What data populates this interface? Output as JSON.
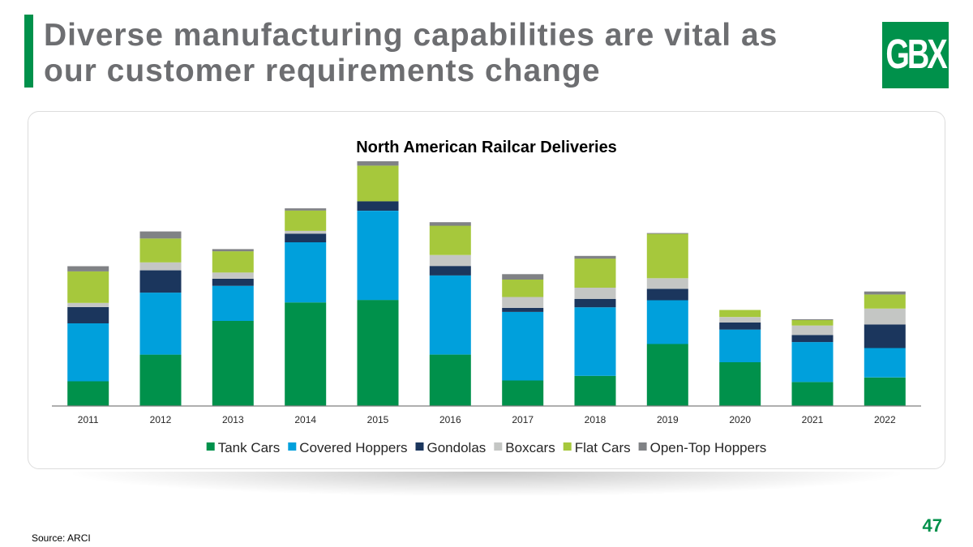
{
  "slide": {
    "title": "Diverse manufacturing capabilities are vital as our customer requirements change",
    "logo_text": "GBX",
    "page_number": "47",
    "source": "Source: ARCI",
    "brand_color": "#00914b"
  },
  "chart_data": {
    "type": "bar",
    "stacked": true,
    "title": "North American Railcar Deliveries",
    "xlabel": "",
    "ylabel": "",
    "ylim": [
      0,
      90000
    ],
    "grid": false,
    "legend_position": "bottom",
    "categories": [
      "2011",
      "2012",
      "2013",
      "2014",
      "2015",
      "2016",
      "2017",
      "2018",
      "2019",
      "2020",
      "2021",
      "2022"
    ],
    "series": [
      {
        "name": "Tank Cars",
        "color": "#00914b",
        "values": [
          9100,
          18900,
          31300,
          38100,
          39000,
          18900,
          9400,
          11100,
          22800,
          16100,
          8800,
          10500
        ]
      },
      {
        "name": "Covered Hoppers",
        "color": "#00a0dc",
        "values": [
          21300,
          22800,
          12900,
          22100,
          32800,
          29100,
          25200,
          25200,
          16100,
          12000,
          14700,
          10800
        ]
      },
      {
        "name": "Gondolas",
        "color": "#1b365d",
        "values": [
          6000,
          8200,
          2600,
          3200,
          3500,
          3500,
          1500,
          3100,
          4200,
          2600,
          2600,
          8700
        ]
      },
      {
        "name": "Boxcars",
        "color": "#c4c6c4",
        "values": [
          1500,
          2900,
          2300,
          1000,
          0,
          4000,
          4000,
          4100,
          3900,
          2000,
          3500,
          5800
        ]
      },
      {
        "name": "Flat Cars",
        "color": "#a6c83c",
        "values": [
          11600,
          8800,
          7800,
          7500,
          13100,
          10800,
          6400,
          10700,
          16300,
          2600,
          2000,
          5200
        ]
      },
      {
        "name": "Open-Top Hoppers",
        "color": "#808285",
        "values": [
          1900,
          2600,
          800,
          800,
          1600,
          1300,
          2000,
          1000,
          300,
          0,
          300,
          1100
        ]
      }
    ]
  }
}
